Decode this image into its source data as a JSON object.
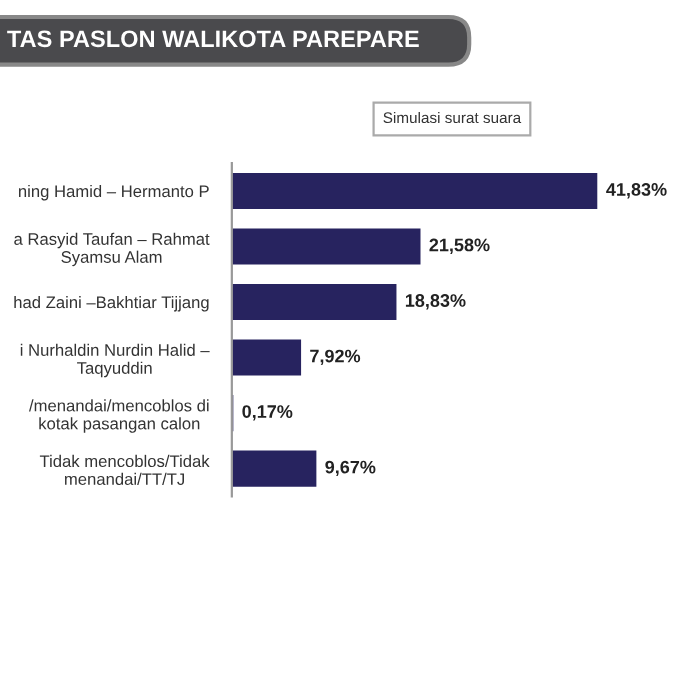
{
  "chart_data": {
    "type": "bar",
    "orientation": "horizontal",
    "title": "TAS PASLON WALIKOTA PAREPARE",
    "subtitle": "Simulasi surat suara",
    "categories": [
      "ning Hamid – Hermanto P",
      "a Rasyid Taufan – Rahmat\nSyamsu Alam",
      "had Zaini –Bakhtiar Tijjang",
      "i Nurhaldin Nurdin Halid –\nTaqyuddin",
      "/menandai/mencoblos di\nkotak pasangan calon",
      "Tidak mencoblos/Tidak\nmenandai/TT/TJ"
    ],
    "values": [
      41.83,
      21.58,
      18.83,
      7.92,
      0.17,
      9.67
    ],
    "value_labels": [
      "41,83%",
      "21,58%",
      "18,83%",
      "7,92%",
      "0,17%",
      "9,67%"
    ],
    "color": "#27235f",
    "grid": false,
    "legend": false
  }
}
